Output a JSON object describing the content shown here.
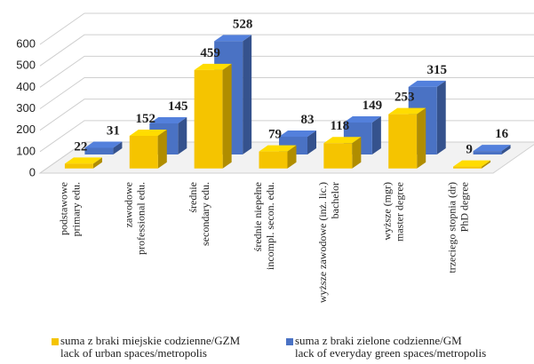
{
  "chart_data": {
    "type": "bar3d",
    "categories": [
      [
        "podstawowe",
        "primary edu."
      ],
      [
        "zawodowe",
        "professional edu."
      ],
      [
        "średnie",
        "secondary edu."
      ],
      [
        "średnie niepełne",
        "incompl. secon. edu."
      ],
      [
        "wyższe zawodowe (inż. lic.)",
        "bachelor"
      ],
      [
        "wyższe (mgr)",
        "master degree"
      ],
      [
        "trzeciego stopnia (dr)",
        "PhD degree"
      ]
    ],
    "series": [
      {
        "name": "suma z braki miejskie codzienne/GZM\nlack of urban spaces/metropolis",
        "color": "#f5c400",
        "values": [
          22,
          152,
          459,
          79,
          118,
          253,
          9
        ]
      },
      {
        "name": "suma z braki zielone codzienne/GM\nlack of everyday green spaces/metropolis",
        "color": "#4a72c4",
        "values": [
          31,
          145,
          528,
          83,
          149,
          315,
          16
        ]
      }
    ],
    "ylim": [
      0,
      600
    ],
    "yticks": [
      0,
      100,
      200,
      300,
      400,
      500,
      600
    ],
    "grid": true
  }
}
